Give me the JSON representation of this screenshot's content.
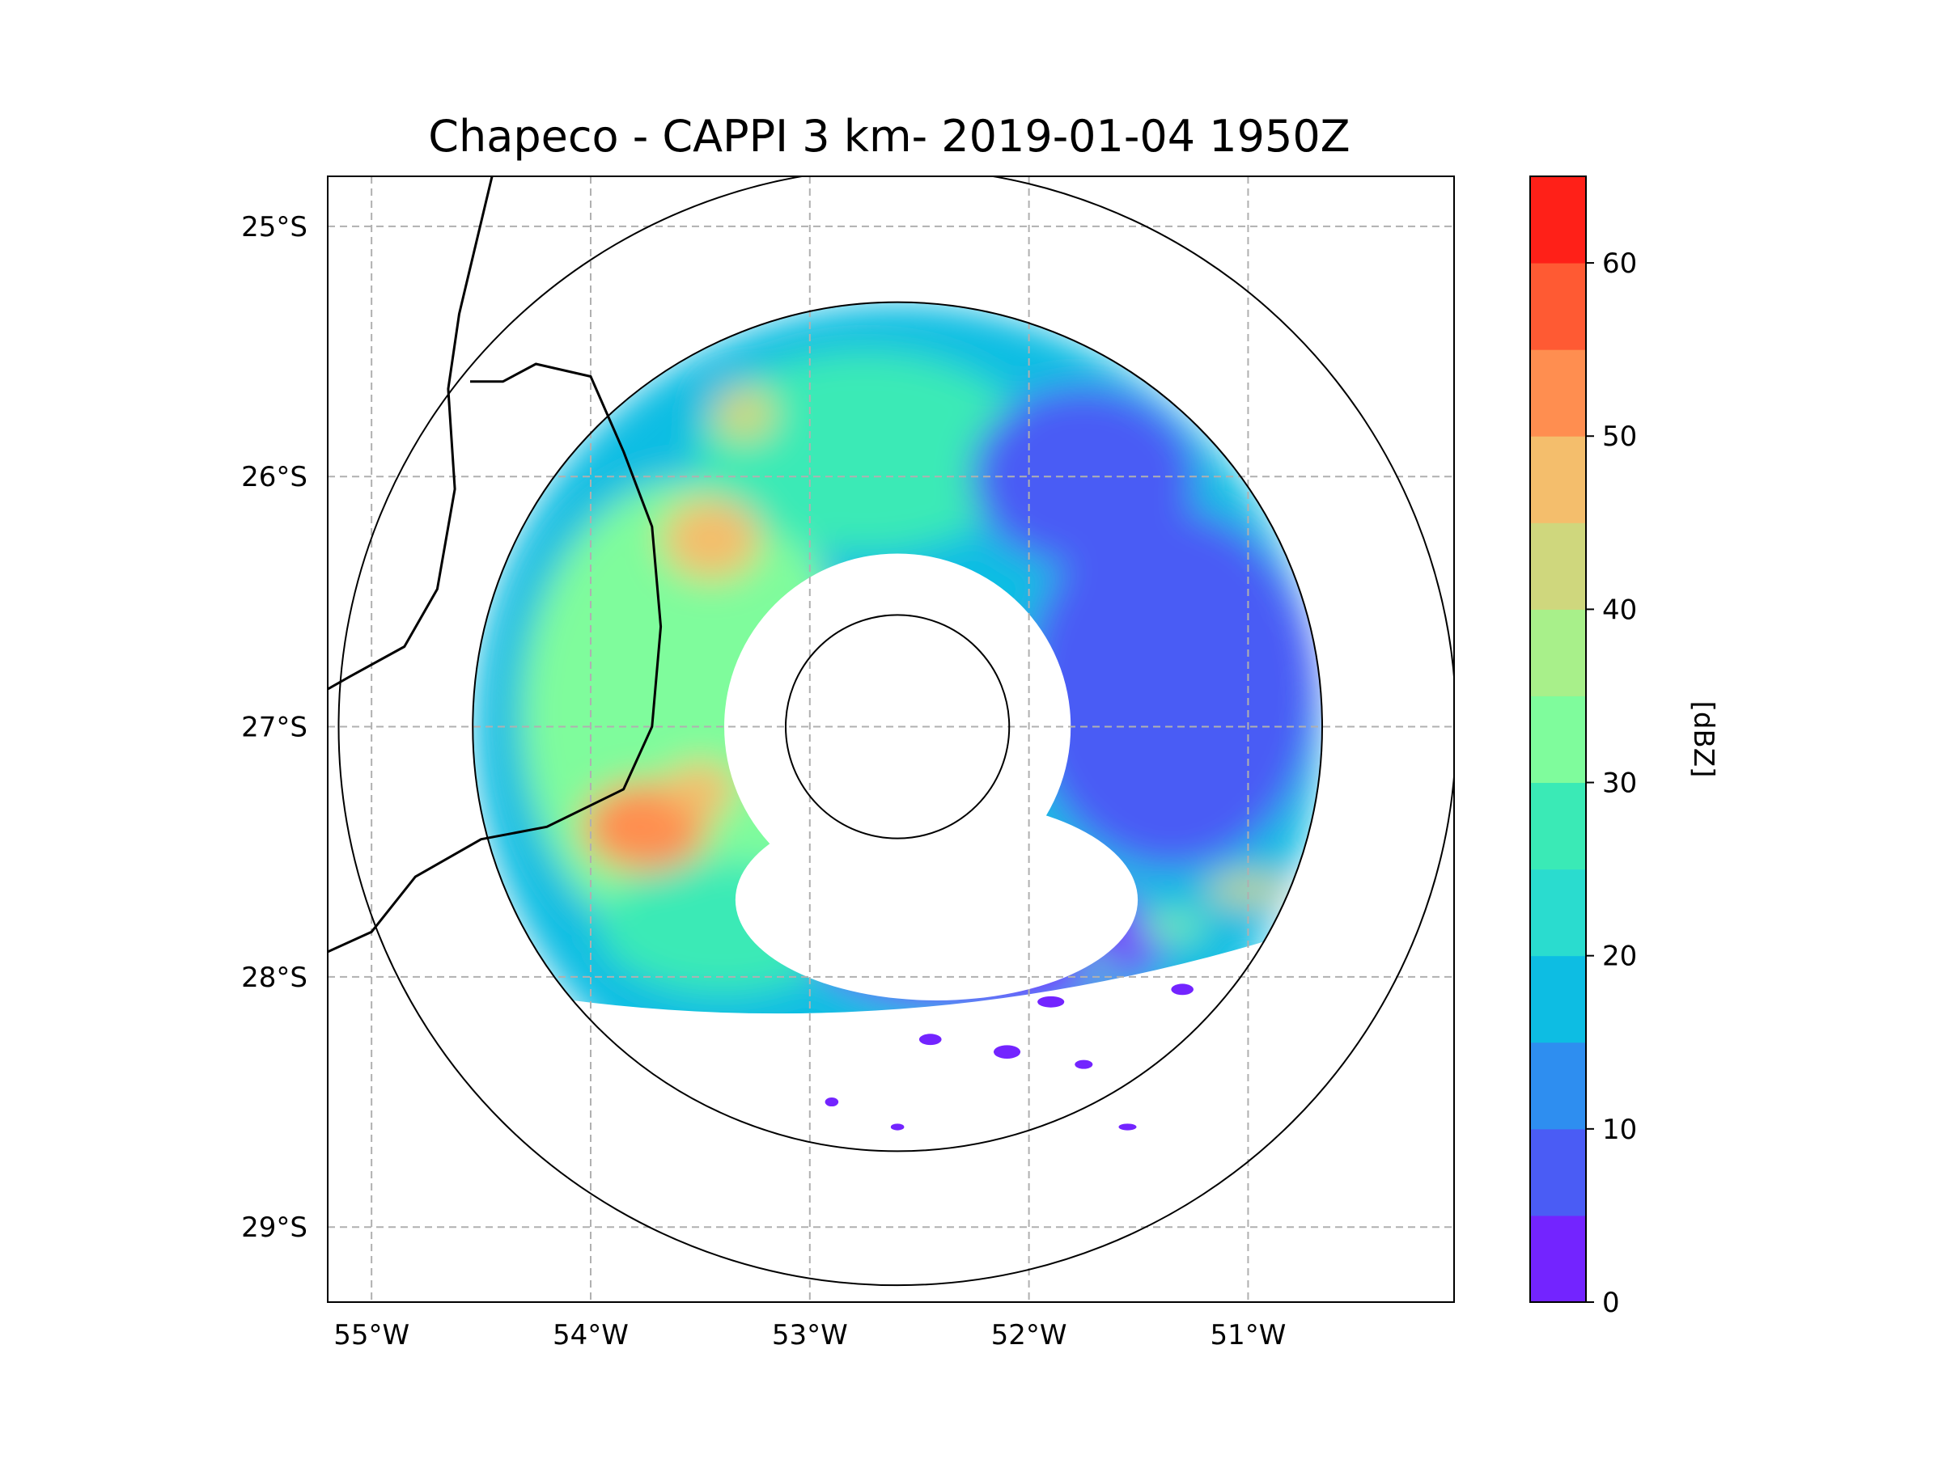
{
  "chart_data": {
    "type": "heatmap",
    "title": "Chapeco - CAPPI 3 km- 2019-01-04 1950Z",
    "radar_site": {
      "lon": -52.6,
      "lat": -27.0
    },
    "extent": {
      "lon": [
        -55.2,
        -50.06
      ],
      "lat": [
        -29.3,
        -24.8
      ]
    },
    "grid": true,
    "range_rings_km": [
      50,
      190,
      250
    ],
    "x_ticks": [
      {
        "value": -55,
        "label": "55°W"
      },
      {
        "value": -54,
        "label": "54°W"
      },
      {
        "value": -53,
        "label": "53°W"
      },
      {
        "value": -52,
        "label": "52°W"
      },
      {
        "value": -51,
        "label": "51°W"
      }
    ],
    "y_ticks": [
      {
        "value": -25,
        "label": "25°S"
      },
      {
        "value": -26,
        "label": "26°S"
      },
      {
        "value": -27,
        "label": "27°S"
      },
      {
        "value": -28,
        "label": "28°S"
      },
      {
        "value": -29,
        "label": "29°S"
      }
    ],
    "colorbar": {
      "label": "[dBZ]",
      "range": [
        0,
        65
      ],
      "levels": [
        0,
        5,
        10,
        15,
        20,
        25,
        30,
        35,
        40,
        45,
        50,
        55,
        60,
        65
      ],
      "colors": [
        "#7324ff",
        "#4a5cf5",
        "#2e8ef0",
        "#0dbde3",
        "#2adccf",
        "#3aeab6",
        "#7ffc9c",
        "#a8f08a",
        "#cfd77d",
        "#f4be6c",
        "#ff8e50",
        "#ff5a33",
        "#ff2018"
      ],
      "ticks": [
        {
          "value": 0,
          "label": "0"
        },
        {
          "value": 10,
          "label": "10"
        },
        {
          "value": 20,
          "label": "20"
        },
        {
          "value": 30,
          "label": "30"
        },
        {
          "value": 40,
          "label": "40"
        },
        {
          "value": 50,
          "label": "50"
        },
        {
          "value": 60,
          "label": "60"
        }
      ]
    },
    "reflectivity_regions": [
      {
        "name": "western-stratiform",
        "dbz": 30,
        "lon": -53.55,
        "lat": -26.95,
        "rx_km": 75,
        "ry_km": 105
      },
      {
        "name": "northern-stratiform",
        "dbz": 29,
        "lon": -52.75,
        "lat": -25.9,
        "rx_km": 75,
        "ry_km": 45
      },
      {
        "name": "southwest-stratiform",
        "dbz": 27,
        "lon": -53.4,
        "lat": -27.8,
        "rx_km": 55,
        "ry_km": 30
      },
      {
        "name": "east-light-echoes",
        "dbz": 8,
        "lon": -51.35,
        "lat": -26.85,
        "rx_km": 65,
        "ry_km": 80
      },
      {
        "name": "northeast-light-echoes",
        "dbz": 5,
        "lon": -51.75,
        "lat": -26.0,
        "rx_km": 50,
        "ry_km": 40
      },
      {
        "name": "south-light-echoes",
        "dbz": 3,
        "lon": -52.2,
        "lat": -27.85,
        "rx_km": 80,
        "ry_km": 30
      },
      {
        "name": "cell-northwest",
        "dbz": 48,
        "lon": -53.45,
        "lat": -26.25,
        "rx_km": 22,
        "ry_km": 18
      },
      {
        "name": "cell-north",
        "dbz": 44,
        "lon": -53.3,
        "lat": -25.75,
        "rx_km": 14,
        "ry_km": 12
      },
      {
        "name": "cell-southwest",
        "dbz": 52,
        "lon": -53.75,
        "lat": -27.4,
        "rx_km": 28,
        "ry_km": 20
      },
      {
        "name": "cell-southwest-2",
        "dbz": 47,
        "lon": -53.5,
        "lat": -27.25,
        "rx_km": 16,
        "ry_km": 12
      },
      {
        "name": "line-southeast",
        "dbz": 40,
        "lon": -51.0,
        "lat": -27.65,
        "rx_km": 18,
        "ry_km": 6
      },
      {
        "name": "line-southeast-2",
        "dbz": 30,
        "lon": -51.35,
        "lat": -27.8,
        "rx_km": 16,
        "ry_km": 5
      },
      {
        "name": "line-southeast-3",
        "dbz": 28,
        "lon": -51.7,
        "lat": -27.95,
        "rx_km": 12,
        "ry_km": 4
      }
    ],
    "boundary_lines": [
      {
        "name": "international-border",
        "points": [
          [
            -54.45,
            -24.8
          ],
          [
            -54.6,
            -25.35
          ],
          [
            -54.65,
            -25.65
          ],
          [
            -54.62,
            -26.05
          ],
          [
            -54.7,
            -26.45
          ],
          [
            -54.85,
            -26.68
          ],
          [
            -55.1,
            -26.8
          ],
          [
            -55.2,
            -26.85
          ]
        ]
      },
      {
        "name": "state-border-uruguay-river",
        "points": [
          [
            -55.2,
            -27.9
          ],
          [
            -55.0,
            -27.82
          ],
          [
            -54.8,
            -27.6
          ],
          [
            -54.5,
            -27.45
          ],
          [
            -54.2,
            -27.4
          ],
          [
            -53.85,
            -27.25
          ],
          [
            -53.72,
            -27.0
          ],
          [
            -53.68,
            -26.6
          ],
          [
            -53.72,
            -26.2
          ],
          [
            -53.85,
            -25.9
          ],
          [
            -54.0,
            -25.6
          ],
          [
            -54.25,
            -25.55
          ],
          [
            -54.4,
            -25.62
          ],
          [
            -54.55,
            -25.62
          ]
        ]
      }
    ]
  }
}
